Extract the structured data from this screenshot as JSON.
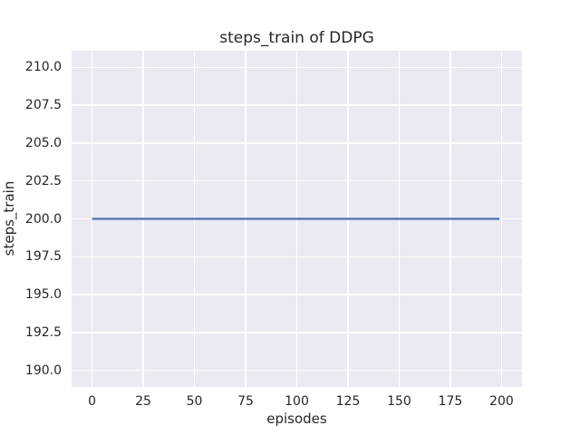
{
  "chart_data": {
    "type": "line",
    "title": "steps_train of DDPG",
    "xlabel": "episodes",
    "ylabel": "steps_train",
    "xlim": [
      -10,
      210
    ],
    "ylim": [
      188.9,
      211.1
    ],
    "x_ticks": [
      0,
      25,
      50,
      75,
      100,
      125,
      150,
      175,
      200
    ],
    "x_tick_labels": [
      "0",
      "25",
      "50",
      "75",
      "100",
      "125",
      "150",
      "175",
      "200"
    ],
    "y_ticks": [
      190.0,
      192.5,
      195.0,
      197.5,
      200.0,
      202.5,
      205.0,
      207.5,
      210.0
    ],
    "y_tick_labels": [
      "190.0",
      "192.5",
      "195.0",
      "197.5",
      "200.0",
      "202.5",
      "205.0",
      "207.5",
      "210.0"
    ],
    "grid": true,
    "legend": false,
    "series": [
      {
        "name": "steps_train",
        "x": [
          0,
          199
        ],
        "y": [
          200,
          200
        ],
        "color": "#4c72b0",
        "description": "constant 200 training steps for every episode from 0 to 199"
      }
    ],
    "colors": {
      "plot_background": "#eaeaf2",
      "figure_background": "#ffffff",
      "grid": "#ffffff",
      "text": "#262626",
      "line": "#4c72b0"
    }
  }
}
